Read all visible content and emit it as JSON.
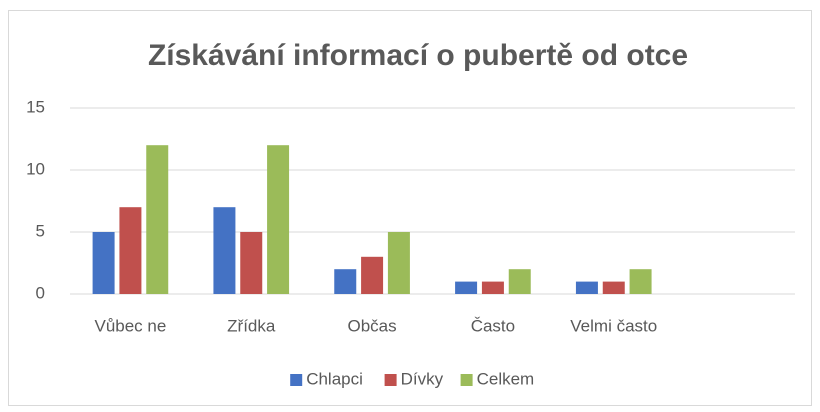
{
  "chart_data": {
    "type": "bar",
    "title": "Získávání informací o pubertě od otce",
    "categories": [
      "Vůbec ne",
      "Zřídka",
      "Občas",
      "Často",
      "Velmi často",
      null
    ],
    "series": [
      {
        "name": "Chlapci",
        "color": "#4472c4",
        "values": [
          5,
          7,
          2,
          1,
          1,
          null
        ]
      },
      {
        "name": "Dívky",
        "color": "#c0504d",
        "values": [
          7,
          5,
          3,
          1,
          1,
          null
        ]
      },
      {
        "name": "Celkem",
        "color": "#9bbb59",
        "values": [
          12,
          12,
          5,
          2,
          2,
          null
        ]
      }
    ],
    "ylim": [
      0,
      15
    ],
    "yticks": [
      0,
      5,
      10,
      15
    ],
    "grid": true,
    "legend": "bottom"
  }
}
